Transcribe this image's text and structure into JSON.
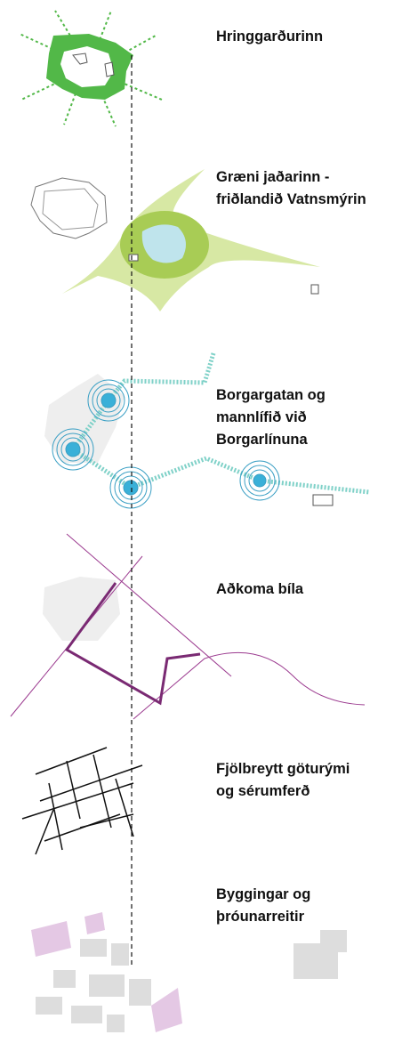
{
  "layers": [
    {
      "lines": [
        "Hringgarðurinn"
      ]
    },
    {
      "lines": [
        "Græni jaðarinn -",
        "friðlandið Vatnsmýrin"
      ]
    },
    {
      "lines": [
        "Borgargatan og",
        "mannlífið við",
        "Borgarlínuna"
      ]
    },
    {
      "lines": [
        "Aðkoma bíla"
      ]
    },
    {
      "lines": [
        "Fjölbreytt göturými",
        "og sérumferð"
      ]
    },
    {
      "lines": [
        "Byggingar og",
        "þróunarreitir"
      ]
    }
  ]
}
